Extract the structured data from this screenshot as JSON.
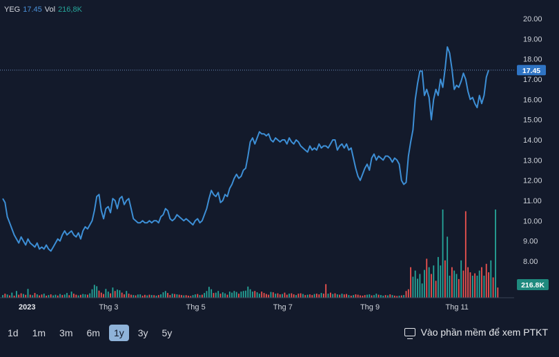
{
  "legend": {
    "symbol": "YEG",
    "price": "17.45",
    "vol_label": "Vol",
    "vol_value": "216,8K"
  },
  "price_tag": "17.45",
  "volume_tag": "216.8K",
  "periods": [
    "1d",
    "1m",
    "3m",
    "6m",
    "1y",
    "3y",
    "5y"
  ],
  "active_period": "1y",
  "ptkt_label": "Vào phần mềm để xem PTKT",
  "colors": {
    "background": "#131a2b",
    "line": "#3d8fd6",
    "tag_price": "#2f74c4",
    "tag_volume": "#1f8a7e",
    "vol_up": "#26a69a",
    "vol_down": "#ef5350"
  },
  "chart_data": {
    "type": "line",
    "title": "",
    "xlabel": "",
    "ylabel": "",
    "ylim": [
      7.2,
      20.3
    ],
    "y_ticks": [
      "20.00",
      "19.00",
      "18.00",
      "17.00",
      "16.00",
      "15.00",
      "14.00",
      "13.00",
      "12.00",
      "11.00",
      "10.00",
      "9.00",
      "8.00"
    ],
    "x_ticks": [
      "2023",
      "Thg 3",
      "Thg 5",
      "Thg 7",
      "Thg 9",
      "Thg 11"
    ],
    "x_tick_index": [
      4,
      42,
      80,
      118,
      156,
      194
    ],
    "last_price": 17.45,
    "grid": false,
    "series": [
      {
        "values": [
          11.1,
          10.9,
          10.2,
          9.9,
          9.6,
          9.3,
          9.1,
          8.9,
          9.2,
          9.0,
          8.8,
          9.1,
          8.9,
          8.8,
          8.7,
          8.9,
          8.6,
          8.7,
          8.6,
          8.8,
          8.6,
          8.5,
          8.7,
          8.9,
          9.1,
          9.0,
          9.3,
          9.5,
          9.3,
          9.4,
          9.5,
          9.3,
          9.2,
          9.4,
          9.1,
          9.5,
          9.7,
          9.6,
          9.8,
          10.0,
          10.5,
          11.2,
          11.3,
          10.5,
          10.1,
          10.6,
          10.7,
          10.4,
          11.1,
          11.0,
          10.6,
          11.1,
          11.2,
          10.8,
          11.0,
          11.1,
          10.6,
          10.1,
          10.0,
          9.9,
          9.9,
          10.0,
          9.9,
          9.9,
          10.0,
          9.9,
          10.0,
          10.0,
          9.9,
          10.2,
          10.3,
          10.6,
          10.5,
          10.1,
          10.0,
          10.1,
          10.3,
          10.2,
          10.1,
          10.0,
          10.1,
          10.0,
          9.9,
          9.8,
          10.0,
          10.1,
          9.9,
          10.0,
          10.3,
          10.6,
          11.1,
          11.5,
          11.3,
          11.2,
          11.4,
          10.9,
          11.0,
          11.3,
          11.2,
          11.6,
          11.8,
          12.1,
          12.3,
          12.1,
          12.2,
          12.5,
          12.6,
          13.2,
          13.9,
          14.1,
          13.8,
          14.1,
          14.4,
          14.3,
          14.3,
          14.2,
          14.3,
          14.0,
          13.9,
          14.1,
          14.0,
          13.9,
          14.0,
          14.0,
          13.8,
          14.1,
          13.9,
          13.8,
          14.0,
          13.9,
          13.7,
          13.6,
          13.5,
          13.4,
          13.7,
          13.5,
          13.6,
          13.5,
          13.8,
          13.6,
          13.7,
          13.7,
          13.6,
          13.8,
          14.0,
          14.0,
          13.5,
          13.7,
          13.8,
          13.6,
          13.8,
          13.5,
          13.6,
          13.1,
          12.6,
          12.2,
          12.0,
          12.3,
          12.6,
          12.8,
          12.5,
          13.1,
          13.3,
          13.0,
          13.2,
          13.1,
          13.0,
          13.2,
          13.2,
          13.1,
          12.9,
          13.1,
          13.0,
          12.8,
          12.0,
          11.8,
          11.9,
          13.2,
          13.9,
          14.5,
          16.0,
          16.8,
          17.4,
          17.4,
          16.2,
          16.5,
          16.1,
          15.0,
          16.0,
          16.5,
          16.2,
          17.0,
          16.6,
          17.5,
          18.6,
          18.3,
          17.5,
          16.5,
          16.7,
          16.6,
          16.9,
          17.3,
          17.0,
          16.4,
          16.0,
          16.1,
          15.8,
          15.6,
          16.2,
          15.8,
          16.2,
          17.1,
          17.45
        ]
      }
    ],
    "volume": {
      "ylim": [
        0,
        2600
      ],
      "values": [
        80,
        120,
        95,
        70,
        150,
        60,
        200,
        90,
        130,
        110,
        85,
        260,
        90,
        75,
        140,
        100,
        70,
        95,
        120,
        60,
        80,
        100,
        70,
        90,
        65,
        110,
        80,
        95,
        140,
        75,
        180,
        120,
        90,
        70,
        85,
        110,
        100,
        90,
        130,
        250,
        380,
        340,
        210,
        150,
        110,
        260,
        180,
        130,
        300,
        200,
        240,
        220,
        150,
        100,
        200,
        120,
        90,
        80,
        70,
        95,
        100,
        60,
        85,
        70,
        90,
        80,
        75,
        60,
        80,
        100,
        160,
        200,
        140,
        80,
        120,
        110,
        100,
        90,
        80,
        70,
        75,
        60,
        50,
        80,
        100,
        110,
        80,
        90,
        140,
        200,
        320,
        250,
        140,
        150,
        200,
        120,
        160,
        130,
        90,
        180,
        150,
        200,
        170,
        120,
        180,
        200,
        210,
        330,
        250,
        180,
        200,
        160,
        120,
        180,
        140,
        110,
        90,
        170,
        160,
        120,
        130,
        100,
        110,
        150,
        90,
        120,
        130,
        100,
        80,
        120,
        130,
        110,
        80,
        90,
        100,
        80,
        110,
        120,
        100,
        140,
        120,
        400,
        120,
        150,
        110,
        130,
        100,
        90,
        120,
        100,
        110,
        80,
        60,
        80,
        100,
        90,
        70,
        60,
        80,
        90,
        100,
        70,
        80,
        120,
        90,
        80,
        60,
        80,
        70,
        100,
        80,
        60,
        50,
        60,
        70,
        80,
        200,
        250,
        900,
        620,
        800,
        560,
        700,
        420,
        820,
        1150,
        900,
        700,
        950,
        500,
        1200,
        950,
        2600,
        1100,
        1800,
        650,
        900,
        800,
        700,
        550,
        1100,
        800,
        2550,
        900,
        750,
        650,
        720,
        650,
        800,
        900,
        650,
        1000,
        750,
        1100,
        600,
        2600,
        300
      ],
      "up": [
        1,
        0,
        1,
        0,
        1,
        0,
        1,
        0,
        0,
        1,
        0,
        1,
        0,
        1,
        0,
        1,
        0,
        0,
        1,
        0,
        1,
        0,
        1,
        1,
        0,
        1,
        0,
        1,
        1,
        0,
        1,
        0,
        0,
        1,
        0,
        1,
        1,
        0,
        1,
        1,
        1,
        1,
        0,
        0,
        0,
        1,
        1,
        0,
        1,
        0,
        1,
        1,
        0,
        0,
        1,
        0,
        0,
        1,
        0,
        1,
        1,
        0,
        0,
        1,
        0,
        1,
        0,
        1,
        0,
        1,
        1,
        1,
        0,
        0,
        1,
        0,
        1,
        0,
        0,
        1,
        0,
        0,
        0,
        1,
        1,
        0,
        1,
        0,
        1,
        1,
        1,
        1,
        0,
        1,
        1,
        0,
        1,
        1,
        0,
        1,
        1,
        1,
        1,
        0,
        1,
        1,
        1,
        1,
        1,
        1,
        0,
        1,
        1,
        0,
        0,
        0,
        0,
        1,
        0,
        1,
        0,
        0,
        1,
        0,
        0,
        1,
        0,
        0,
        1,
        0,
        0,
        1,
        0,
        1,
        0,
        0,
        1,
        0,
        0,
        1,
        0,
        0,
        1,
        0,
        1,
        0,
        1,
        0,
        1,
        0,
        0,
        1,
        0,
        1,
        0,
        0,
        0,
        0,
        0,
        1,
        1,
        0,
        1,
        1,
        0,
        1,
        1,
        0,
        1,
        0,
        1,
        0,
        0,
        1,
        0,
        1,
        0,
        0,
        0,
        1,
        1,
        1,
        1,
        1,
        1,
        0,
        1,
        0,
        1,
        0,
        1,
        1,
        1,
        0,
        1,
        1,
        0,
        1,
        1,
        0,
        1,
        0,
        0,
        0,
        0,
        1,
        0,
        1,
        1,
        0,
        1,
        0,
        0,
        1,
        0,
        1,
        0,
        1,
        1,
        1,
        1
      ]
    }
  }
}
